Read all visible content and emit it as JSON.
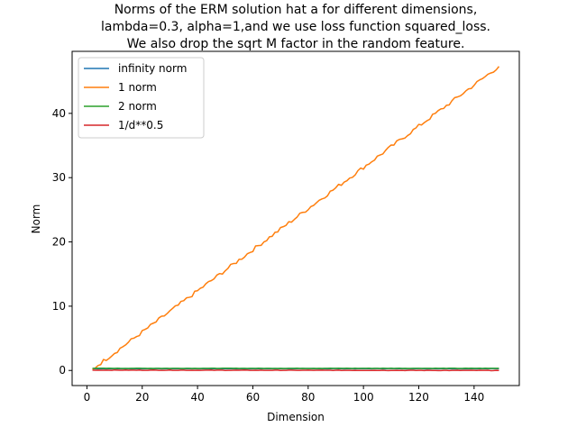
{
  "chart_data": {
    "type": "line",
    "title": [
      "Norms of the ERM solution hat a for different dimensions,",
      "lambda=0.3, alpha=1,and we use loss function squared_loss.",
      "We also drop the sqrt M factor in the random feature."
    ],
    "xlabel": "Dimension",
    "ylabel": "Norm",
    "xlim": [
      -5.35,
      156.35
    ],
    "ylim": [
      -2.35,
      49.65
    ],
    "xticks": [
      0,
      20,
      40,
      60,
      80,
      100,
      120,
      140
    ],
    "yticks": [
      0,
      10,
      20,
      30,
      40
    ],
    "grid": false,
    "legend_position": "top-left",
    "series": [
      {
        "name": "infinity norm",
        "color": "#1f77b4",
        "x_start": 2,
        "x_end": 149,
        "y_start": 0.28,
        "y_end": 0.28,
        "noise": 0.02
      },
      {
        "name": "1 norm",
        "color": "#ff7f0e",
        "x_start": 2,
        "x_end": 149,
        "y_start": 0.2,
        "y_end": 47.3,
        "noise": 0.3
      },
      {
        "name": "2 norm",
        "color": "#2ca02c",
        "x_start": 2,
        "x_end": 149,
        "y_start": 0.33,
        "y_end": 0.33,
        "noise": 0.02
      },
      {
        "name": "1/d**0.5",
        "color": "#d62728",
        "x_start": 2,
        "x_end": 149,
        "y_start": 0.05,
        "y_end": 0.0,
        "noise": 0.03
      }
    ]
  }
}
